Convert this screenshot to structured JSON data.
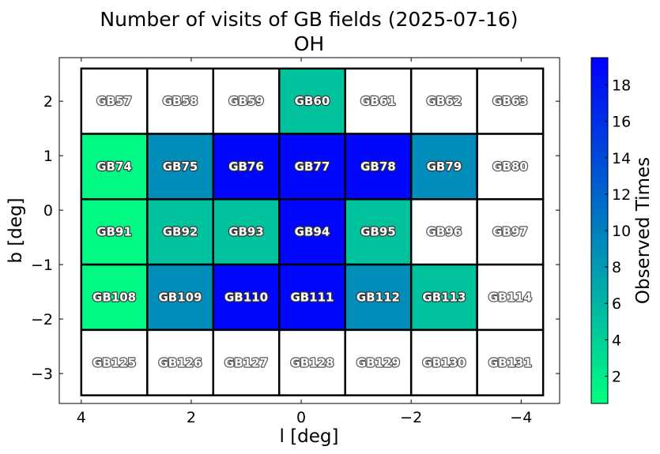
{
  "chart_data": {
    "type": "heatmap",
    "title": "Number of visits of GB fields (2025-07-16)",
    "subtitle": "OH",
    "xlabel": "l [deg]",
    "ylabel": "b [deg]",
    "xlim": [
      4.4,
      -4.7
    ],
    "ylim": [
      -3.55,
      2.8
    ],
    "x_ticks": [
      4,
      2,
      0,
      -2,
      -4
    ],
    "y_ticks": [
      2,
      1,
      0,
      -1,
      -2,
      -3
    ],
    "x_tick_labels": [
      "4",
      "2",
      "0",
      "−2",
      "−4"
    ],
    "y_tick_labels": [
      "2",
      "1",
      "0",
      "−1",
      "−2",
      "−3"
    ],
    "colorbar": {
      "label": "Observed Times",
      "range": [
        0.5,
        19.5
      ],
      "ticks": [
        2,
        4,
        6,
        8,
        10,
        12,
        14,
        16,
        18
      ],
      "colors": {
        "low": "#00ff80",
        "high": "#0000ff"
      }
    },
    "grid": false,
    "column_centers_l": [
      3.4,
      2.2,
      1.0,
      -0.2,
      -1.4,
      -2.6,
      -3.8
    ],
    "row_centers_b": [
      2.0,
      0.8,
      -0.4,
      -1.6,
      -2.8
    ],
    "cell_width_deg": 1.2,
    "cell_height_deg": 1.2,
    "fields": [
      {
        "name": "GB57",
        "row": 0,
        "col": 0,
        "visits": 0
      },
      {
        "name": "GB58",
        "row": 0,
        "col": 1,
        "visits": 0
      },
      {
        "name": "GB59",
        "row": 0,
        "col": 2,
        "visits": 0
      },
      {
        "name": "GB60",
        "row": 0,
        "col": 3,
        "visits": 5
      },
      {
        "name": "GB61",
        "row": 0,
        "col": 4,
        "visits": 0
      },
      {
        "name": "GB62",
        "row": 0,
        "col": 5,
        "visits": 0
      },
      {
        "name": "GB63",
        "row": 0,
        "col": 6,
        "visits": 0
      },
      {
        "name": "GB74",
        "row": 1,
        "col": 0,
        "visits": 1
      },
      {
        "name": "GB75",
        "row": 1,
        "col": 1,
        "visits": 9
      },
      {
        "name": "GB76",
        "row": 1,
        "col": 2,
        "visits": 19
      },
      {
        "name": "GB77",
        "row": 1,
        "col": 3,
        "visits": 19
      },
      {
        "name": "GB78",
        "row": 1,
        "col": 4,
        "visits": 19
      },
      {
        "name": "GB79",
        "row": 1,
        "col": 5,
        "visits": 9
      },
      {
        "name": "GB80",
        "row": 1,
        "col": 6,
        "visits": 0
      },
      {
        "name": "GB91",
        "row": 2,
        "col": 0,
        "visits": 1
      },
      {
        "name": "GB92",
        "row": 2,
        "col": 1,
        "visits": 5
      },
      {
        "name": "GB93",
        "row": 2,
        "col": 2,
        "visits": 5
      },
      {
        "name": "GB94",
        "row": 2,
        "col": 3,
        "visits": 19
      },
      {
        "name": "GB95",
        "row": 2,
        "col": 4,
        "visits": 5
      },
      {
        "name": "GB96",
        "row": 2,
        "col": 5,
        "visits": 0
      },
      {
        "name": "GB97",
        "row": 2,
        "col": 6,
        "visits": 0
      },
      {
        "name": "GB108",
        "row": 3,
        "col": 0,
        "visits": 1
      },
      {
        "name": "GB109",
        "row": 3,
        "col": 1,
        "visits": 9
      },
      {
        "name": "GB110",
        "row": 3,
        "col": 2,
        "visits": 19
      },
      {
        "name": "GB111",
        "row": 3,
        "col": 3,
        "visits": 19
      },
      {
        "name": "GB112",
        "row": 3,
        "col": 4,
        "visits": 9
      },
      {
        "name": "GB113",
        "row": 3,
        "col": 5,
        "visits": 5
      },
      {
        "name": "GB114",
        "row": 3,
        "col": 6,
        "visits": 0
      },
      {
        "name": "GB125",
        "row": 4,
        "col": 0,
        "visits": 0
      },
      {
        "name": "GB126",
        "row": 4,
        "col": 1,
        "visits": 0
      },
      {
        "name": "GB127",
        "row": 4,
        "col": 2,
        "visits": 0
      },
      {
        "name": "GB128",
        "row": 4,
        "col": 3,
        "visits": 0
      },
      {
        "name": "GB129",
        "row": 4,
        "col": 4,
        "visits": 0
      },
      {
        "name": "GB130",
        "row": 4,
        "col": 5,
        "visits": 0
      },
      {
        "name": "GB131",
        "row": 4,
        "col": 6,
        "visits": 0
      }
    ]
  }
}
